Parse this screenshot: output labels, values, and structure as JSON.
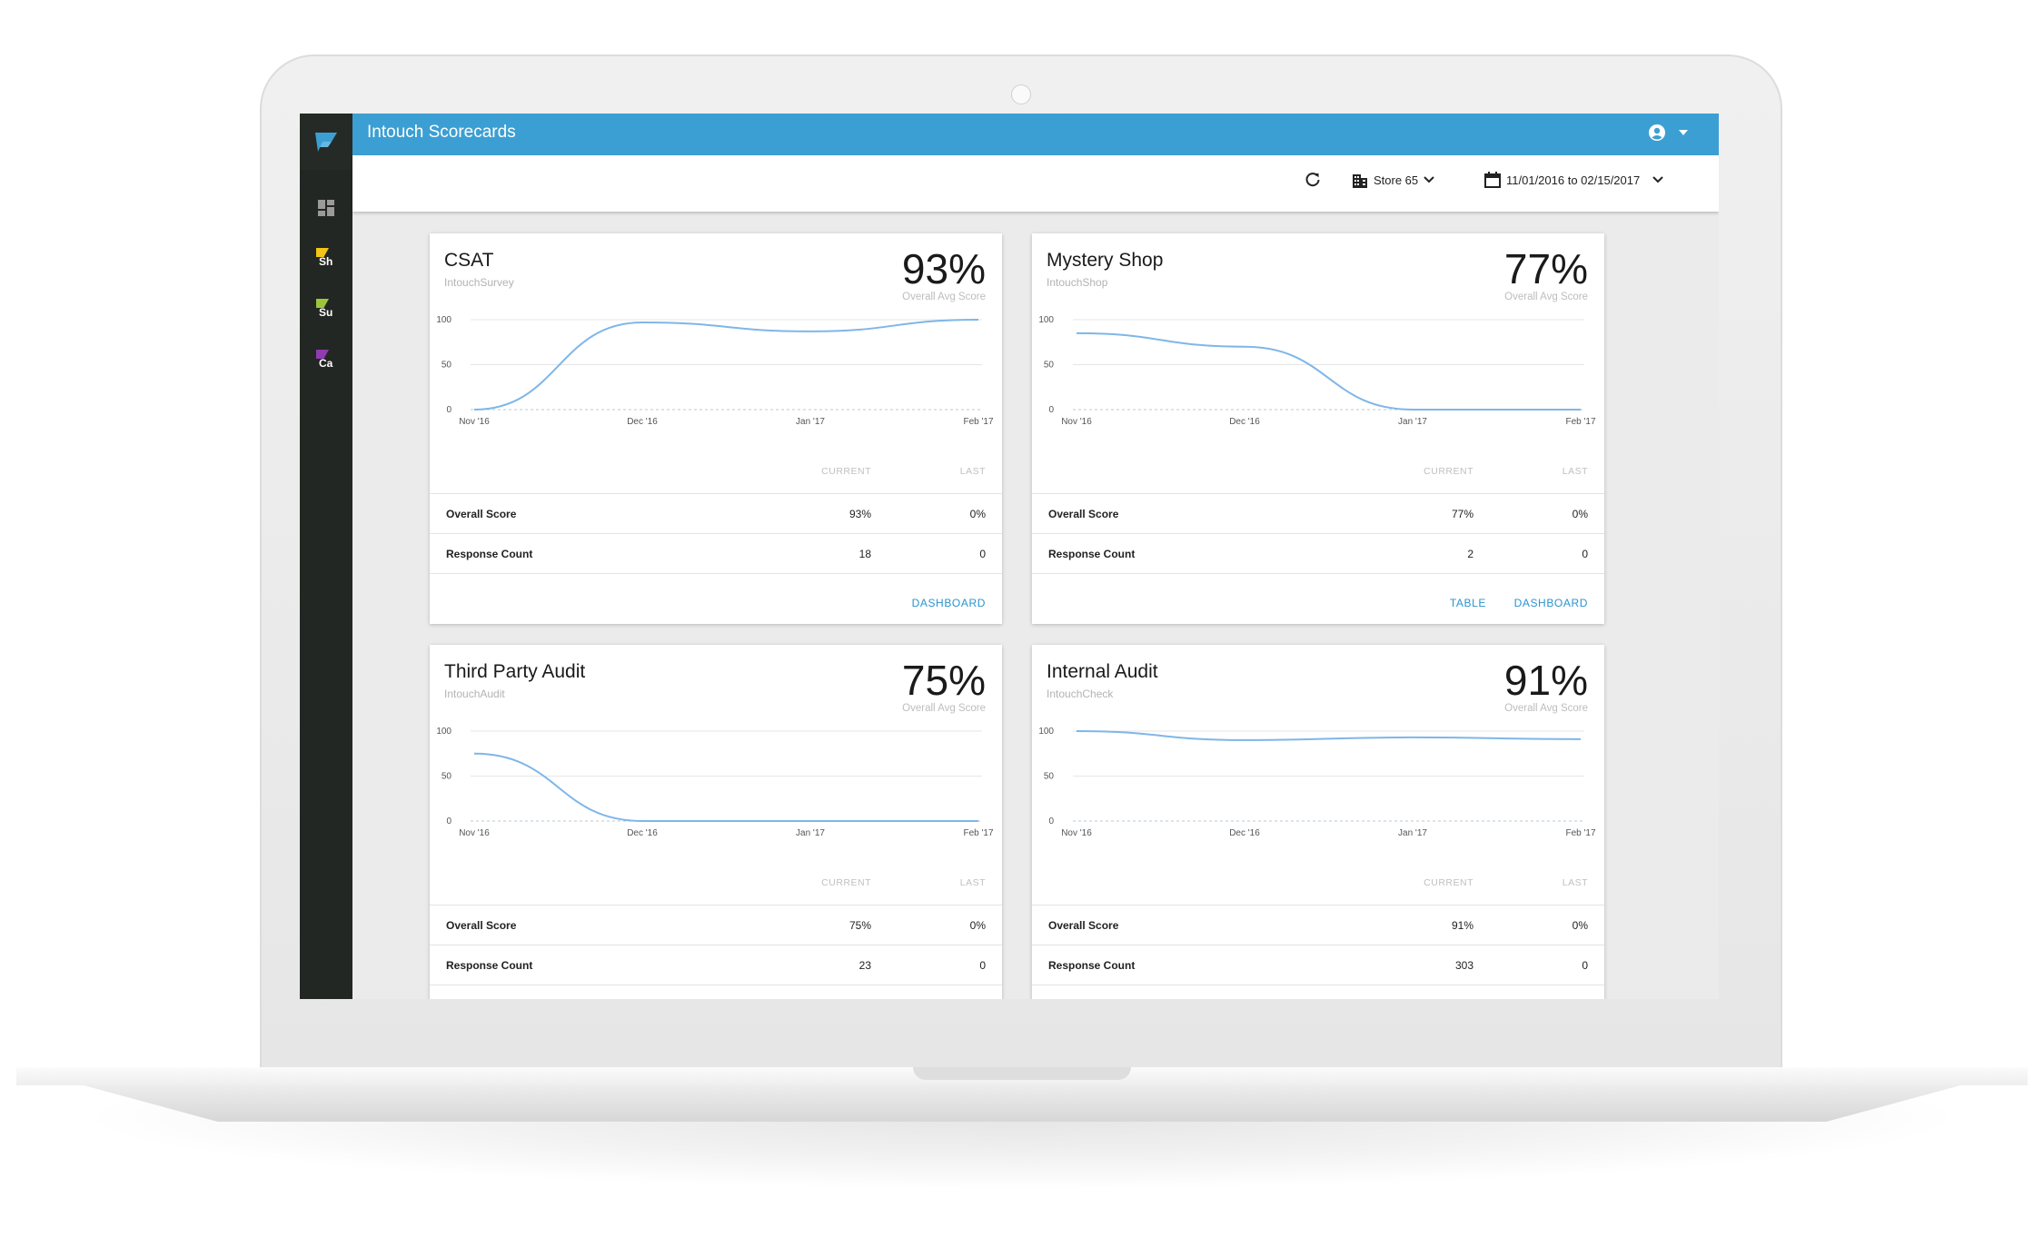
{
  "app": {
    "title": "Intouch Scorecards"
  },
  "sidebar": {
    "items": [
      {
        "label": "Sh",
        "color": "#f2c318"
      },
      {
        "label": "Su",
        "color": "#9cc63a"
      },
      {
        "label": "Ca",
        "color": "#8f3bb2"
      }
    ]
  },
  "toolbar": {
    "store": "Store 65",
    "date_range": "11/01/2016 to 02/15/2017"
  },
  "columns": {
    "current": "CURRENT",
    "last": "LAST"
  },
  "actions": {
    "table": "TABLE",
    "dashboard": "DASHBOARD"
  },
  "cards": [
    {
      "title": "CSAT",
      "source": "IntouchSurvey",
      "score": "93%",
      "score_label": "Overall Avg Score",
      "rows": [
        {
          "label": "Overall Score",
          "current": "93%",
          "last": "0%"
        },
        {
          "label": "Response Count",
          "current": "18",
          "last": "0"
        }
      ]
    },
    {
      "title": "Mystery Shop",
      "source": "IntouchShop",
      "score": "77%",
      "score_label": "Overall Avg Score",
      "rows": [
        {
          "label": "Overall Score",
          "current": "77%",
          "last": "0%"
        },
        {
          "label": "Response Count",
          "current": "2",
          "last": "0"
        }
      ]
    },
    {
      "title": "Third Party Audit",
      "source": "IntouchAudit",
      "score": "75%",
      "score_label": "Overall Avg Score",
      "rows": [
        {
          "label": "Overall Score",
          "current": "75%",
          "last": "0%"
        },
        {
          "label": "Response Count",
          "current": "23",
          "last": "0"
        }
      ]
    },
    {
      "title": "Internal Audit",
      "source": "IntouchCheck",
      "score": "91%",
      "score_label": "Overall Avg Score",
      "rows": [
        {
          "label": "Overall Score",
          "current": "91%",
          "last": "0%"
        },
        {
          "label": "Response Count",
          "current": "303",
          "last": "0"
        }
      ]
    }
  ],
  "chart_data": [
    {
      "type": "line",
      "x": [
        "Nov '16",
        "Dec '16",
        "Jan '17",
        "Feb '17"
      ],
      "y_ticks": [
        0,
        50,
        100
      ],
      "ylim": [
        0,
        100
      ],
      "series": [
        {
          "values": [
            0,
            97,
            87,
            100
          ]
        }
      ],
      "line_color": "#7fb6e8"
    },
    {
      "type": "line",
      "x": [
        "Nov '16",
        "Dec '16",
        "Jan '17",
        "Feb '17"
      ],
      "y_ticks": [
        0,
        50,
        100
      ],
      "ylim": [
        0,
        100
      ],
      "series": [
        {
          "values": [
            85,
            70,
            0,
            0
          ]
        }
      ],
      "line_color": "#7fb6e8"
    },
    {
      "type": "line",
      "x": [
        "Nov '16",
        "Dec '16",
        "Jan '17",
        "Feb '17"
      ],
      "y_ticks": [
        0,
        50,
        100
      ],
      "ylim": [
        0,
        100
      ],
      "series": [
        {
          "values": [
            75,
            0,
            0,
            0
          ]
        }
      ],
      "line_color": "#7fb6e8"
    },
    {
      "type": "line",
      "x": [
        "Nov '16",
        "Dec '16",
        "Jan '17",
        "Feb '17"
      ],
      "y_ticks": [
        0,
        50,
        100
      ],
      "ylim": [
        0,
        100
      ],
      "series": [
        {
          "values": [
            100,
            90,
            93,
            91
          ]
        }
      ],
      "line_color": "#7fb6e8"
    }
  ]
}
